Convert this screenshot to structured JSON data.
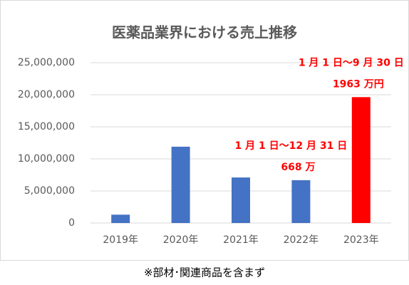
{
  "chart_data": {
    "type": "bar",
    "title": "医薬品業界における売上推移",
    "categories": [
      "2019年",
      "2020年",
      "2021年",
      "2022年",
      "2023年"
    ],
    "values": [
      1300000,
      11900000,
      7100000,
      6680000,
      19630000
    ],
    "value_labels": [
      null,
      null,
      null,
      "668 万",
      "1963 万円"
    ],
    "colors": [
      "#4472c4",
      "#4472c4",
      "#4472c4",
      "#4472c4",
      "#ff0000"
    ],
    "annotations": [
      "1 月 1 日～12 月 31 日",
      "1 月 1 日～9 月 30 日"
    ],
    "ylim": [
      0,
      25000000
    ],
    "yticks": [
      0,
      {
        "value": 5000000,
        "label": "5,000,000"
      },
      {
        "value": 10000000,
        "label": "10,000,000"
      },
      {
        "value": 15000000,
        "label": "15,000,000"
      },
      {
        "value": 20000000,
        "label": "20,000,000"
      },
      {
        "value": 25000000,
        "label": "25,000,000"
      }
    ],
    "grid": true,
    "footnote": "※部材･関連商品を含まず"
  }
}
